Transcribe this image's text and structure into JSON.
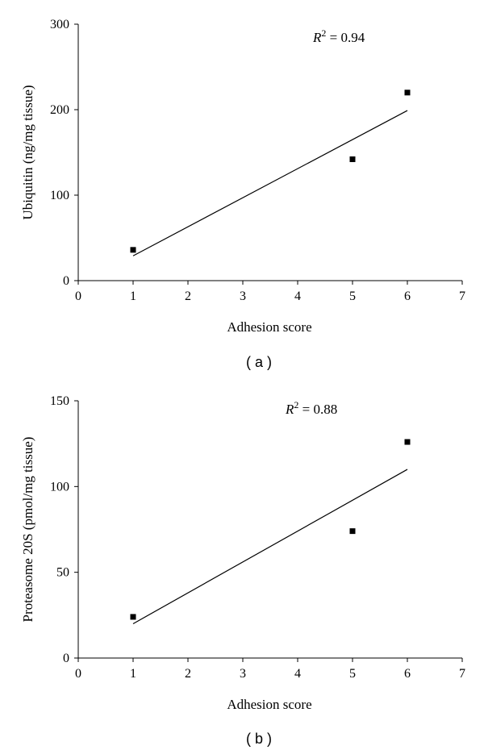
{
  "chart_data": [
    {
      "type": "scatter",
      "panel_label": "( a )",
      "xlabel": "Adhesion score",
      "ylabel": "Ubiquitin (ng/mg tissue)",
      "xlim": [
        0,
        7
      ],
      "ylim": [
        0,
        300
      ],
      "xticks": [
        "0",
        "1",
        "2",
        "3",
        "4",
        "5",
        "6",
        "7"
      ],
      "yticks": [
        "0",
        "100",
        "200",
        "300"
      ],
      "points": [
        {
          "x": 1,
          "y": 36
        },
        {
          "x": 5,
          "y": 142
        },
        {
          "x": 6,
          "y": 220
        }
      ],
      "fit_line": [
        {
          "x": 1,
          "y": 29
        },
        {
          "x": 6,
          "y": 199
        }
      ],
      "annotation": {
        "r_symbol": "R",
        "exponent": "2",
        "text": " = 0.94"
      },
      "grid": false,
      "legend": "none"
    },
    {
      "type": "scatter",
      "panel_label": "( b )",
      "xlabel": "Adhesion score",
      "ylabel": "Proteasome 20S (pmol/mg tissue)",
      "xlim": [
        0,
        7
      ],
      "ylim": [
        0,
        150
      ],
      "xticks": [
        "0",
        "1",
        "2",
        "3",
        "4",
        "5",
        "6",
        "7"
      ],
      "yticks": [
        "0",
        "50",
        "100",
        "150"
      ],
      "points": [
        {
          "x": 1,
          "y": 24
        },
        {
          "x": 5,
          "y": 74
        },
        {
          "x": 6,
          "y": 126
        }
      ],
      "fit_line": [
        {
          "x": 1,
          "y": 20
        },
        {
          "x": 6,
          "y": 110
        }
      ],
      "annotation": {
        "r_symbol": "R",
        "exponent": "2",
        "text": " = 0.88"
      },
      "grid": false,
      "legend": "none"
    }
  ]
}
